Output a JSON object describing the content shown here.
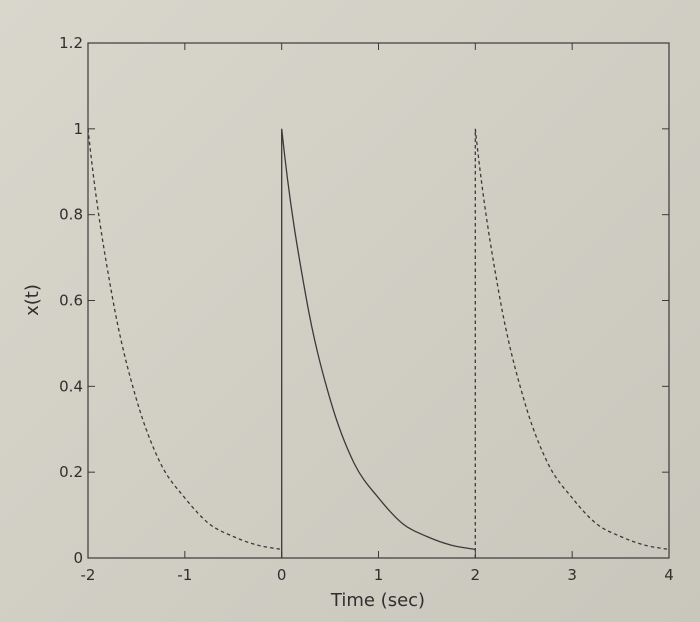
{
  "chart_data": {
    "type": "line",
    "xlabel": "Time (sec)",
    "ylabel": "x(t)",
    "xlim": [
      -2,
      4
    ],
    "ylim": [
      0,
      1.2
    ],
    "xticks": [
      -2,
      -1,
      0,
      1,
      2,
      3,
      4
    ],
    "yticks": [
      0,
      0.2,
      0.4,
      0.6,
      0.8,
      1,
      1.2
    ],
    "xtick_labels": [
      "-2",
      "-1",
      "0",
      "1",
      "2",
      "3",
      "4"
    ],
    "ytick_labels": [
      "0",
      "0.2",
      "0.4",
      "0.6",
      "0.8",
      "1",
      "1.2"
    ],
    "grid": false,
    "series": [
      {
        "style": "dashed",
        "x": [
          -2,
          -1.75,
          -1.5,
          -1.25,
          -1,
          -0.75,
          -0.5,
          -0.25,
          0
        ],
        "y": [
          1,
          0.61,
          0.37,
          0.22,
          0.14,
          0.08,
          0.05,
          0.03,
          0.02
        ]
      },
      {
        "style": "solid",
        "x": [
          0,
          0,
          0.25,
          0.5,
          0.75,
          1,
          1.25,
          1.5,
          1.75,
          2
        ],
        "y": [
          0,
          1,
          0.61,
          0.37,
          0.22,
          0.14,
          0.08,
          0.05,
          0.03,
          0.02
        ]
      },
      {
        "style": "dashed",
        "x": [
          2,
          2,
          2.25,
          2.5,
          2.75,
          3,
          3.25,
          3.5,
          3.75,
          4
        ],
        "y": [
          0,
          1,
          0.61,
          0.37,
          0.22,
          0.14,
          0.08,
          0.05,
          0.03,
          0.02
        ]
      }
    ],
    "colors": {
      "line": "#3a3a3a",
      "axes": "#3a3a3a",
      "text": "#2f2f2f"
    }
  }
}
